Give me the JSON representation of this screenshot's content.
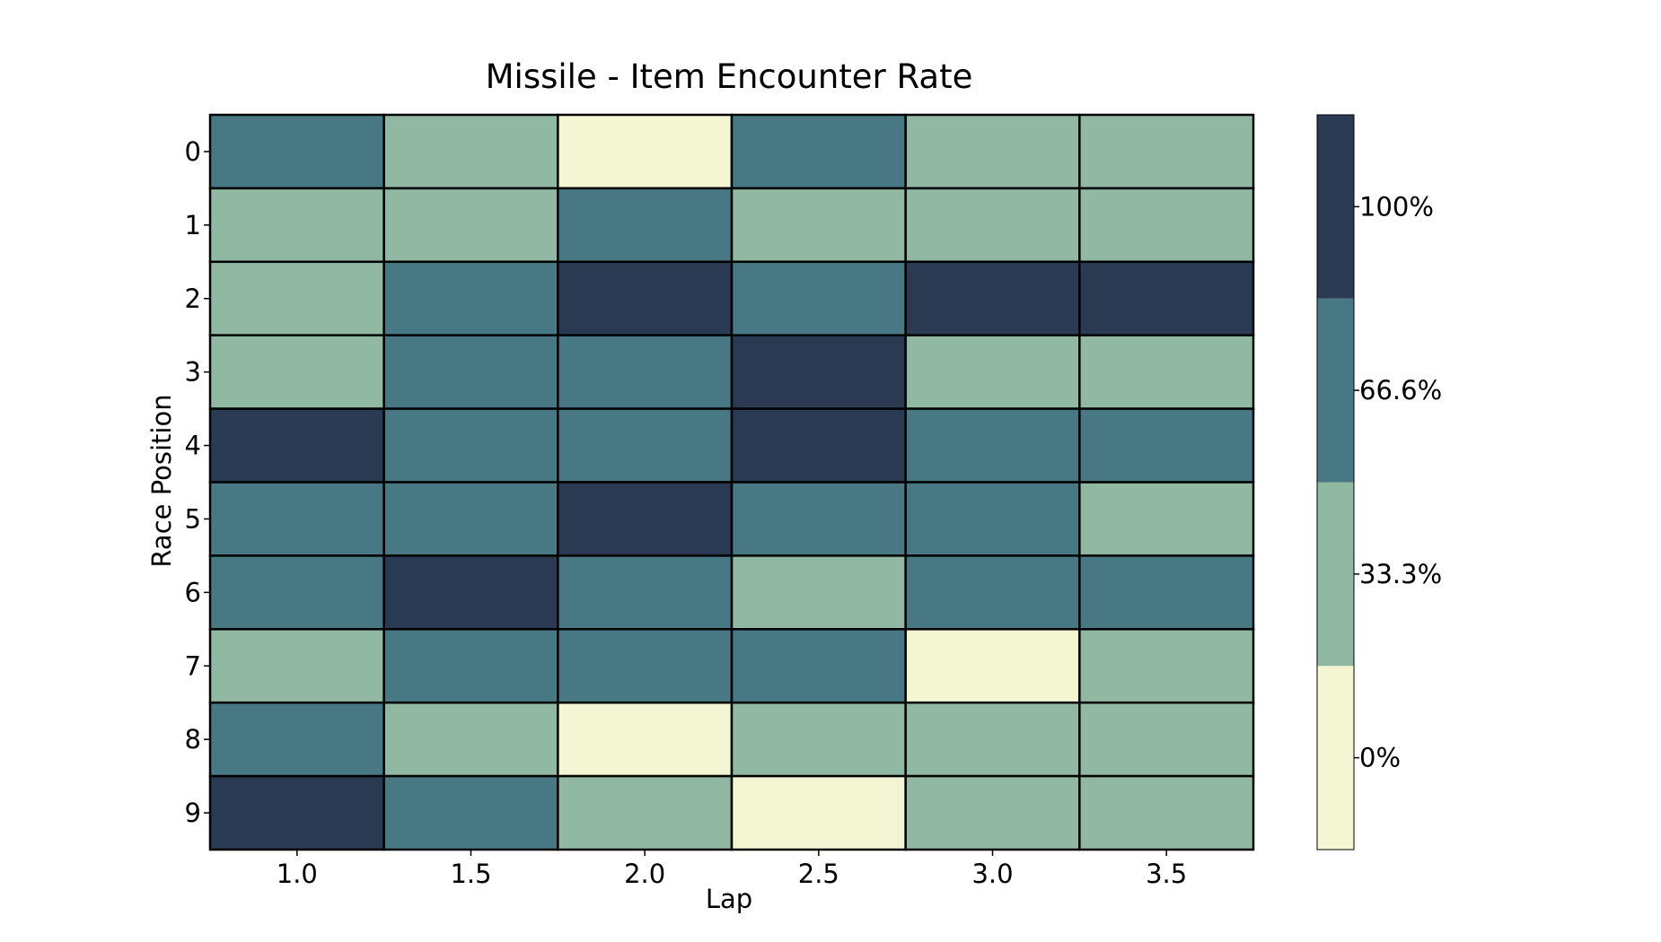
{
  "chart_data": {
    "type": "heatmap",
    "title": "Missile - Item Encounter Rate",
    "xlabel": "Lap",
    "ylabel": "Race Position",
    "x": [
      "1.0",
      "1.5",
      "2.0",
      "2.5",
      "3.0",
      "3.5"
    ],
    "y": [
      "0",
      "1",
      "2",
      "3",
      "4",
      "5",
      "6",
      "7",
      "8",
      "9"
    ],
    "values": [
      [
        66.6,
        33.3,
        0,
        66.6,
        33.3,
        33.3
      ],
      [
        33.3,
        33.3,
        66.6,
        33.3,
        33.3,
        33.3
      ],
      [
        33.3,
        66.6,
        100,
        66.6,
        100,
        100
      ],
      [
        33.3,
        66.6,
        66.6,
        100,
        33.3,
        33.3
      ],
      [
        100,
        66.6,
        66.6,
        100,
        66.6,
        66.6
      ],
      [
        66.6,
        66.6,
        100,
        66.6,
        66.6,
        33.3
      ],
      [
        66.6,
        100,
        66.6,
        33.3,
        66.6,
        66.6
      ],
      [
        33.3,
        66.6,
        66.6,
        66.6,
        0,
        33.3
      ],
      [
        66.6,
        33.3,
        0,
        33.3,
        33.3,
        33.3
      ],
      [
        100,
        66.6,
        33.3,
        0,
        33.3,
        33.3
      ]
    ],
    "colorbar": {
      "levels": [
        0,
        33.3,
        66.6,
        100
      ],
      "tick_labels": [
        "0%",
        "33.3%",
        "66.6%",
        "100%"
      ],
      "colors": [
        "#f4f5d3",
        "#90b8a3",
        "#477883",
        "#293a52"
      ]
    },
    "grid": false,
    "cell_border_color": "#000000"
  }
}
